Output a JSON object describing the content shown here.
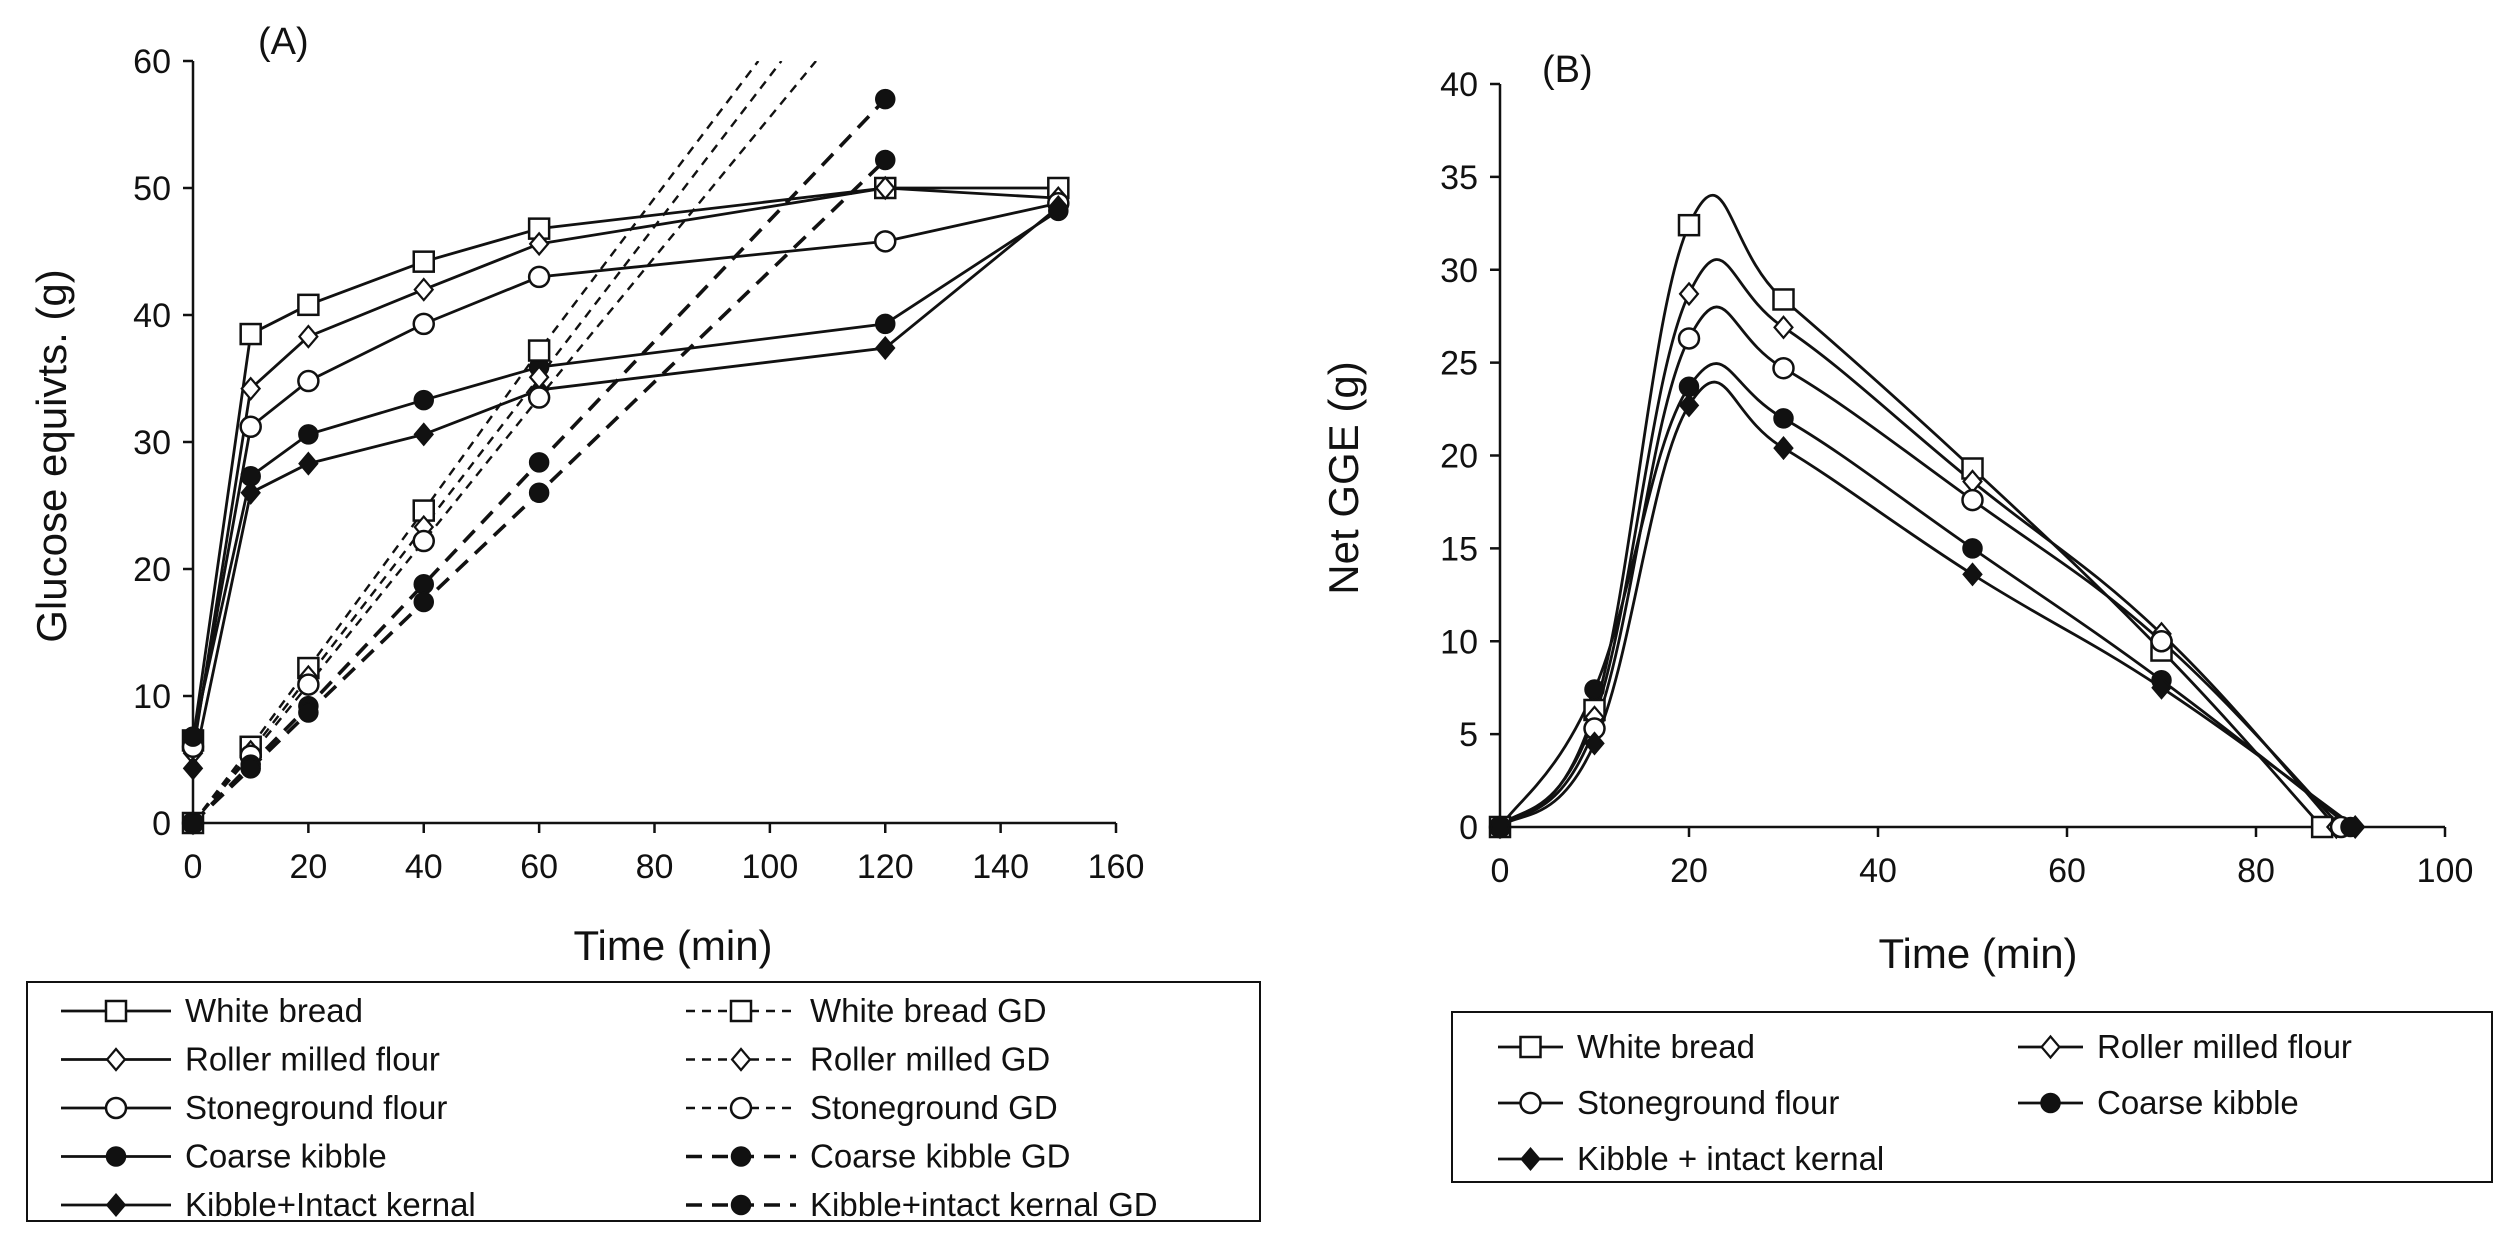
{
  "colors": {
    "line": "#111111",
    "open_fill": "#ffffff",
    "solid_fill": "#111111",
    "background": "#ffffff"
  },
  "chart_data": [
    {
      "id": "A",
      "type": "line",
      "panel_label": "(A)",
      "xlabel": "Time (min)",
      "ylabel": "Glucose equivts. (g)",
      "xlim": [
        0,
        160
      ],
      "ylim": [
        0,
        60
      ],
      "xticks": [
        0,
        20,
        40,
        60,
        80,
        100,
        120,
        140,
        160
      ],
      "yticks": [
        0,
        10,
        20,
        30,
        40,
        50,
        60
      ],
      "grid": false,
      "legend_placement": "bottom (boxed, two columns)",
      "legend_columns": 2,
      "legend_order": [
        0,
        5,
        1,
        6,
        2,
        7,
        3,
        8,
        4,
        9
      ],
      "series": [
        {
          "name": "White bread",
          "marker": "square",
          "style": "solid",
          "smooth": false,
          "x": [
            0,
            10,
            20,
            40,
            60,
            120,
            150
          ],
          "y": [
            6.5,
            38.5,
            40.8,
            44.2,
            46.8,
            50.0,
            50.0
          ]
        },
        {
          "name": "Roller milled flour",
          "marker": "diamond",
          "style": "solid",
          "smooth": false,
          "x": [
            0,
            10,
            20,
            40,
            60,
            120,
            150
          ],
          "y": [
            5.5,
            34.2,
            38.3,
            42.0,
            45.6,
            50.0,
            49.2
          ]
        },
        {
          "name": "Stoneground flour",
          "marker": "circle",
          "style": "solid",
          "smooth": false,
          "x": [
            0,
            10,
            20,
            40,
            60,
            120,
            150
          ],
          "y": [
            6.0,
            31.2,
            34.8,
            39.3,
            43.0,
            45.8,
            48.8
          ]
        },
        {
          "name": "Coarse kibble",
          "marker": "dot",
          "style": "solid",
          "smooth": false,
          "x": [
            0,
            10,
            20,
            40,
            60,
            120,
            150
          ],
          "y": [
            6.8,
            27.3,
            30.6,
            33.3,
            35.9,
            39.3,
            48.2
          ]
        },
        {
          "name": "Kibble+Intact kernal",
          "marker": "filled-diamond",
          "style": "solid",
          "smooth": false,
          "x": [
            0,
            10,
            20,
            40,
            60,
            120,
            150
          ],
          "y": [
            4.3,
            26.0,
            28.3,
            30.6,
            34.1,
            37.4,
            48.5
          ]
        },
        {
          "name": "White bread GD",
          "marker": "square",
          "style": "dashed",
          "smooth": false,
          "x": [
            0,
            10,
            20,
            40,
            60
          ],
          "y": [
            0,
            6.0,
            12.2,
            24.6,
            37.2
          ],
          "trend_to": [
            98,
            60
          ]
        },
        {
          "name": "Roller milled GD",
          "marker": "diamond",
          "style": "dashed",
          "smooth": false,
          "x": [
            0,
            10,
            20,
            40,
            60
          ],
          "y": [
            0,
            5.6,
            11.5,
            23.3,
            35.1
          ],
          "trend_to": [
            102,
            60
          ]
        },
        {
          "name": "Stoneground GD",
          "marker": "circle",
          "style": "dashed",
          "smooth": false,
          "x": [
            0,
            10,
            20,
            40,
            60
          ],
          "y": [
            0,
            5.3,
            10.9,
            22.2,
            33.5
          ],
          "trend_to": [
            108,
            60
          ]
        },
        {
          "name": "Coarse kibble GD",
          "marker": "dot",
          "style": "dashed-bold",
          "smooth": false,
          "x": [
            0,
            10,
            20,
            40,
            60,
            120
          ],
          "y": [
            0,
            4.6,
            9.2,
            18.8,
            28.4,
            57.0
          ]
        },
        {
          "name": "Kibble+intact kernal GD",
          "marker": "dot",
          "style": "dashed-bold",
          "smooth": false,
          "x": [
            0,
            10,
            20,
            40,
            60,
            120
          ],
          "y": [
            0,
            4.3,
            8.7,
            17.4,
            26.0,
            52.2
          ]
        }
      ]
    },
    {
      "id": "B",
      "type": "line",
      "panel_label": "(B)",
      "xlabel": "Time (min)",
      "ylabel": "Net GGE (g)",
      "xlim": [
        0,
        100
      ],
      "ylim": [
        0,
        40
      ],
      "xticks": [
        0,
        20,
        40,
        60,
        80,
        100
      ],
      "yticks": [
        0,
        5,
        10,
        15,
        20,
        25,
        30,
        35,
        40
      ],
      "grid": false,
      "legend_placement": "bottom (boxed, two columns)",
      "legend_columns": 2,
      "legend_order": [
        0,
        1,
        2,
        3,
        4
      ],
      "series": [
        {
          "name": "White bread",
          "marker": "square",
          "style": "solid",
          "smooth": true,
          "x": [
            0,
            10,
            20,
            30,
            50,
            70,
            87
          ],
          "y": [
            0,
            6.3,
            32.4,
            28.4,
            19.3,
            9.5,
            0
          ]
        },
        {
          "name": "Roller milled flour",
          "marker": "diamond",
          "style": "solid",
          "smooth": true,
          "x": [
            0,
            10,
            20,
            30,
            50,
            70,
            88.5
          ],
          "y": [
            0,
            5.9,
            28.7,
            26.9,
            18.6,
            10.4,
            0
          ]
        },
        {
          "name": "Stoneground flour",
          "marker": "circle",
          "style": "solid",
          "smooth": true,
          "x": [
            0,
            10,
            20,
            30,
            50,
            70,
            89
          ],
          "y": [
            0,
            5.3,
            26.3,
            24.7,
            17.6,
            10.0,
            0
          ]
        },
        {
          "name": "Coarse kibble",
          "marker": "dot",
          "style": "solid",
          "smooth": true,
          "x": [
            0,
            10,
            20,
            30,
            50,
            70,
            90
          ],
          "y": [
            0,
            7.4,
            23.7,
            22.0,
            15.0,
            7.9,
            0
          ]
        },
        {
          "name": "Kibble + intact kernal",
          "marker": "filled-diamond",
          "style": "solid",
          "smooth": true,
          "x": [
            0,
            10,
            20,
            30,
            50,
            70,
            90.5
          ],
          "y": [
            0,
            4.5,
            22.7,
            20.4,
            13.6,
            7.5,
            0
          ]
        }
      ]
    }
  ]
}
